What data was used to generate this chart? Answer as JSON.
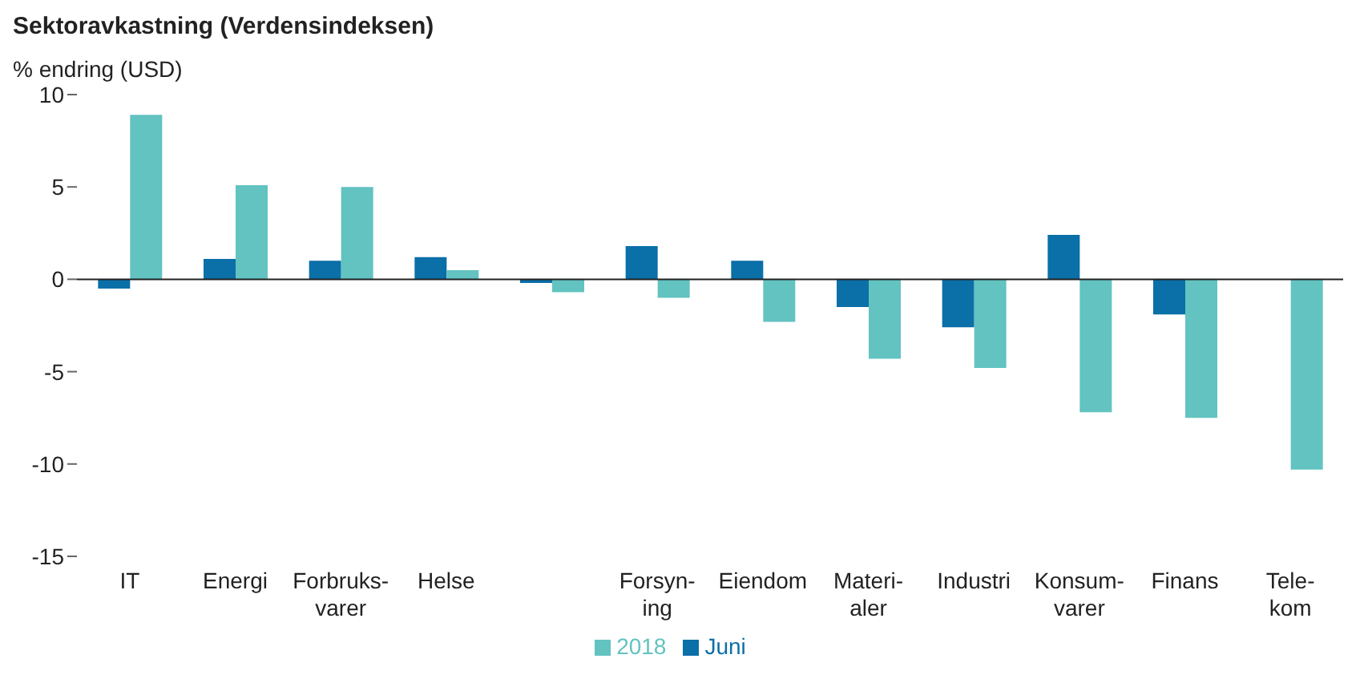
{
  "chart_data": {
    "type": "bar",
    "title": "Sektoravkastning (Verdensindeksen)",
    "ylabel": "% endring (USD)",
    "categories": [
      "IT",
      "Energi",
      "Forbruks-\nvarer",
      "Helse",
      null,
      "Forsyn-\ning",
      "Eiendom",
      "Materi-\naler",
      "Industri",
      "Konsum-\nvarer",
      "Finans",
      "Tele-\nkom"
    ],
    "series": [
      {
        "name": "Juni",
        "color": "#0b6fa8",
        "values": [
          -0.5,
          1.1,
          1.0,
          1.2,
          -0.2,
          1.8,
          1.0,
          -1.5,
          -2.6,
          2.4,
          -1.9,
          null
        ]
      },
      {
        "name": "2018",
        "color": "#62c3c1",
        "values": [
          8.9,
          5.1,
          5.0,
          0.5,
          -0.7,
          -1.0,
          -2.3,
          -4.3,
          -4.8,
          -7.2,
          -7.5,
          -10.3
        ]
      }
    ],
    "ylim": [
      -15,
      10
    ],
    "yticks": [
      -15,
      -10,
      -5,
      0,
      5,
      10
    ],
    "legend": "bottom"
  }
}
